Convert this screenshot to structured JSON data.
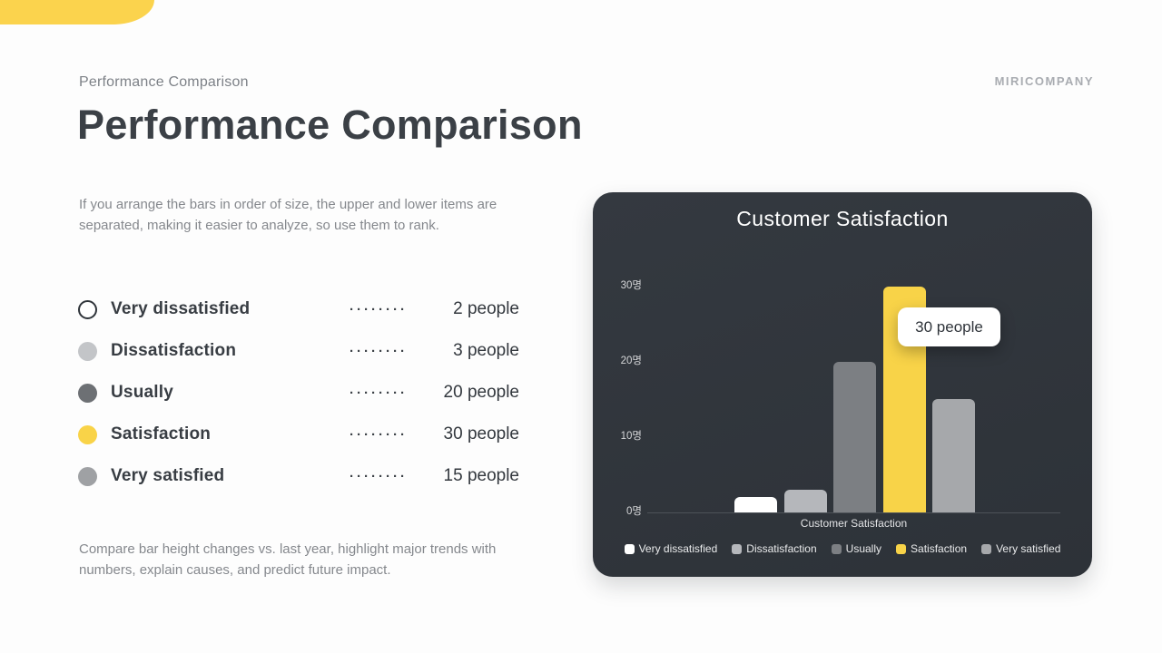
{
  "page": {
    "eyebrow": "Performance Comparison",
    "title": "Performance Comparison",
    "brand": "MIRICOMPANY",
    "intro": "If you arrange the bars in order of size, the upper and lower items are separated, making it easier to analyze, so use them to rank.",
    "footnote": "Compare bar height changes vs. last year, highlight major trends with numbers, explain causes, and predict future impact."
  },
  "stats": {
    "leader": "········",
    "items": [
      {
        "label": "Very dissatisfied",
        "value": "2 people",
        "dot_color": "#ffffff",
        "dot_ring": "#2f343a"
      },
      {
        "label": "Dissatisfaction",
        "value": "3 people",
        "dot_color": "#c3c5c8"
      },
      {
        "label": "Usually",
        "value": "20 people",
        "dot_color": "#6d7074"
      },
      {
        "label": "Satisfaction",
        "value": "30 people",
        "dot_color": "#f9d348"
      },
      {
        "label": "Very satisfied",
        "value": "15 people",
        "dot_color": "#9fa1a4"
      }
    ]
  },
  "chart_data": {
    "type": "bar",
    "title": "Customer Satisfaction",
    "xlabel": "Customer Satisfaction",
    "ylabel": "명 (people)",
    "categories": [
      "Very dissatisfied",
      "Dissatisfaction",
      "Usually",
      "Satisfaction",
      "Very satisfied"
    ],
    "values": [
      2,
      3,
      20,
      30,
      15
    ],
    "colors": [
      "#ffffff",
      "#b5b7bb",
      "#7c7f83",
      "#f8d348",
      "#a6a8ab"
    ],
    "y_ticks": [
      "0명",
      "10명",
      "20명",
      "30명"
    ],
    "ylim": [
      0,
      33
    ],
    "grid": false,
    "legend_position": "bottom",
    "tooltip": {
      "target": "Satisfaction",
      "text": "30 people"
    },
    "card_background": "#30353b",
    "accent_color": "#f8d348"
  }
}
